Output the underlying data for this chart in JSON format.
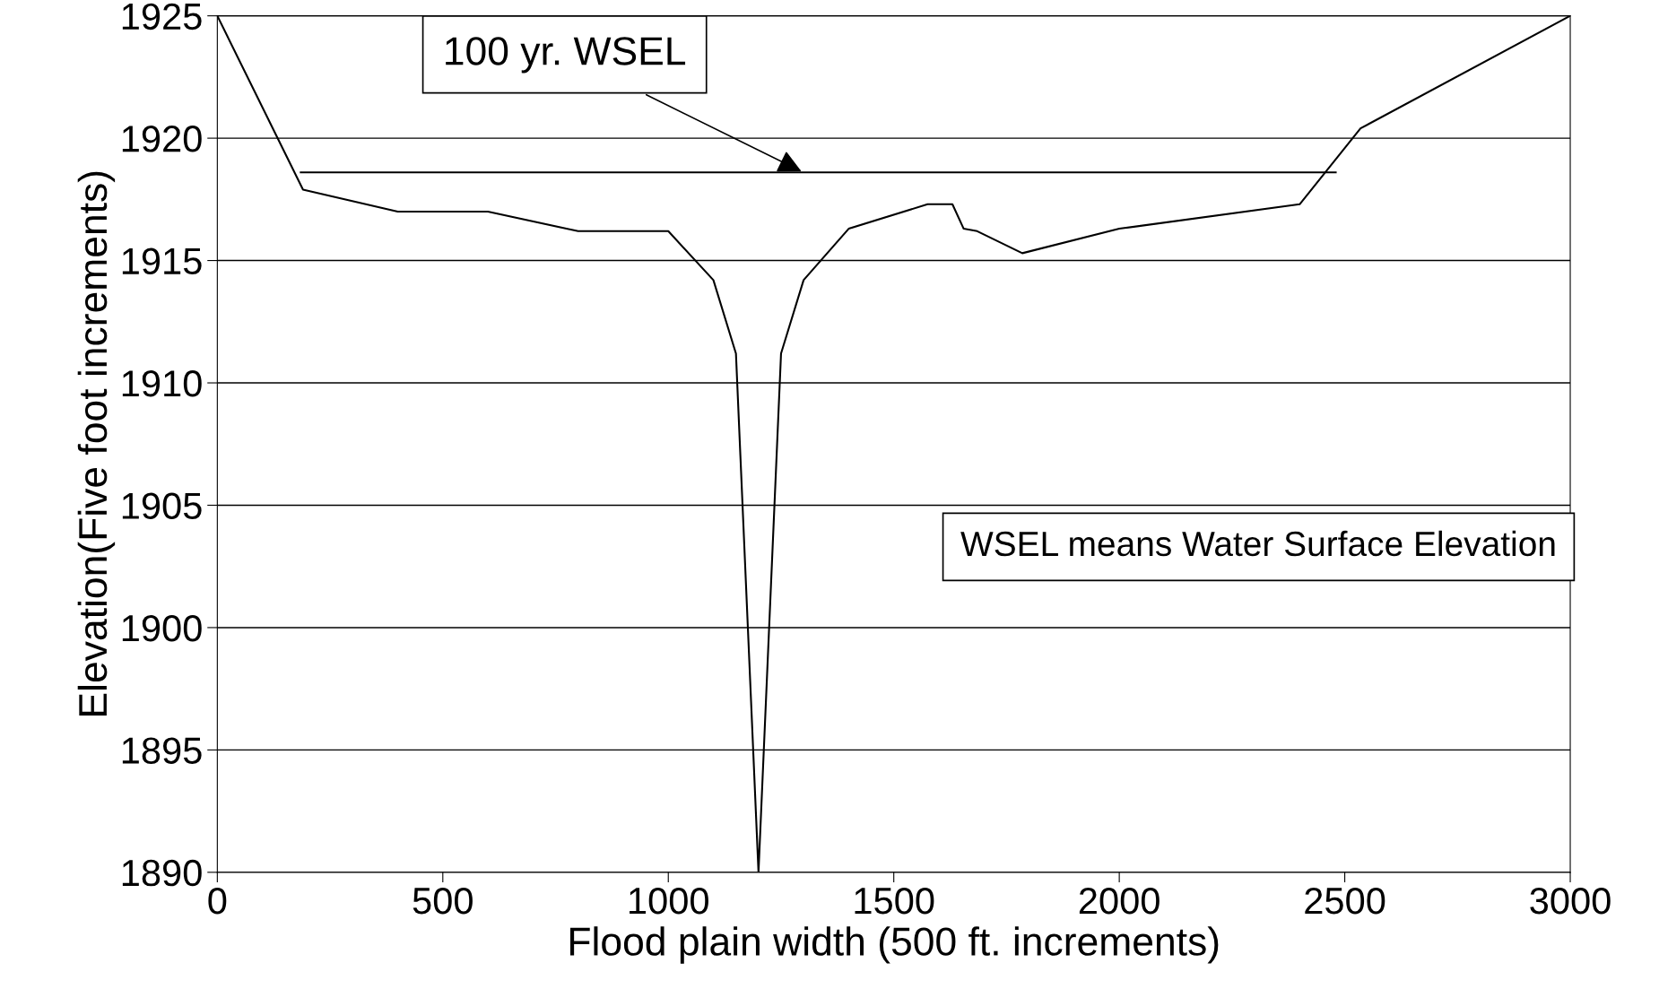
{
  "chart_data": {
    "type": "line",
    "xlabel": "Flood plain width (500 ft. increments)",
    "ylabel": "Elevation(Five foot increments)",
    "series": [
      {
        "color": "#000000",
        "x": [
          0,
          190,
          400,
          600,
          800,
          1000,
          1100,
          1150,
          1200,
          1250,
          1300,
          1400,
          1575,
          1630,
          1655,
          1685,
          1785,
          2000,
          2400,
          2535,
          3000
        ],
        "values": [
          1925,
          1917.9,
          1917,
          1917,
          1916.2,
          1916.2,
          1914.2,
          1911.2,
          1890,
          1911.2,
          1914.2,
          1916.3,
          1917.3,
          1917.3,
          1916.3,
          1916.2,
          1915.3,
          1916.3,
          1917.3,
          1920.4,
          1925
        ]
      },
      {
        "color": "#000000",
        "x": [
          185,
          2480
        ],
        "values": [
          1918.6,
          1918.6
        ]
      }
    ],
    "annotations": [
      {
        "text": "100 yr. WSEL",
        "x": 1300,
        "y": 1918.6
      },
      "WSEL means Water Surface Elevation"
    ],
    "xlim": [
      0,
      3000
    ],
    "xticks": [
      0,
      500,
      1000,
      1500,
      2000,
      2500,
      3000
    ],
    "ylim": [
      1890,
      1925
    ],
    "yticks": [
      1890,
      1895,
      1900,
      1905,
      1910,
      1915,
      1920,
      1925
    ],
    "grid": "y",
    "legend": false,
    "marker": "none",
    "line_style": "solid"
  }
}
